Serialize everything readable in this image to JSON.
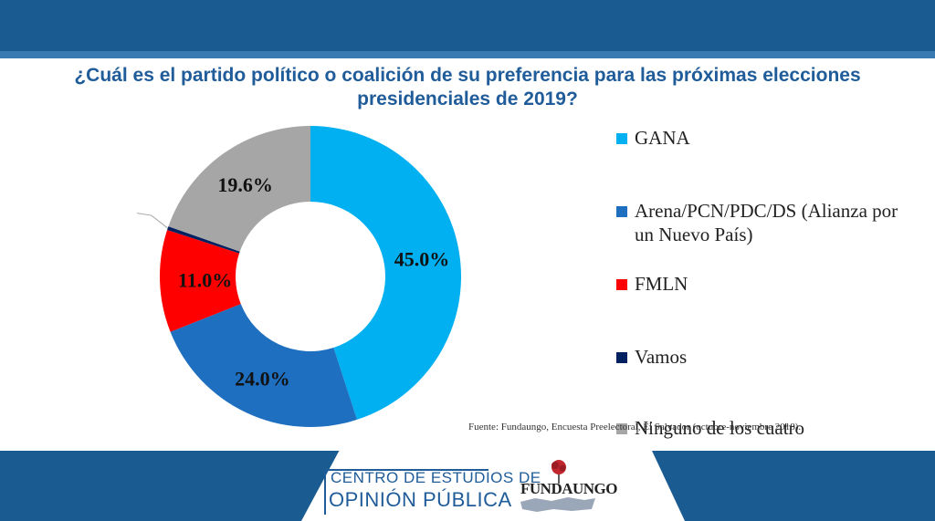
{
  "title": "¿Cuál es el partido político o coalición de su preferencia para las próximas elecciones presidenciales de 2019?",
  "chart_data": {
    "type": "pie",
    "donut": true,
    "title": "¿Cuál es el partido político o coalición de su preferencia para las próximas elecciones presidenciales de 2019?",
    "categories": [
      "GANA",
      "Arena/PCN/PDC/DS (Alianza por un Nuevo País)",
      "FMLN",
      "Vamos",
      "Ninguno de los cuatro"
    ],
    "values": [
      45.0,
      24.0,
      11.0,
      0.4,
      19.6
    ],
    "labels": [
      "45.0%",
      "24.0%",
      "11.0%",
      "0.4%",
      "19.6%"
    ],
    "colors": [
      "#00b0f0",
      "#1e6fc0",
      "#ff0000",
      "#002060",
      "#a6a6a6"
    ],
    "legend_position": "right"
  },
  "source": "Fuente: Fundaungo, Encuesta Preelectoral, El Salvador (octubre-noviembre 2018).",
  "footer": {
    "org_line1": "CENTRO DE ESTUDIOS DE",
    "org_line2": "OPINIÓN PÚBLICA",
    "logo_text": "FUNDAUNGO"
  },
  "colors": {
    "band": "#1a5c92",
    "title": "#1f5c99"
  }
}
